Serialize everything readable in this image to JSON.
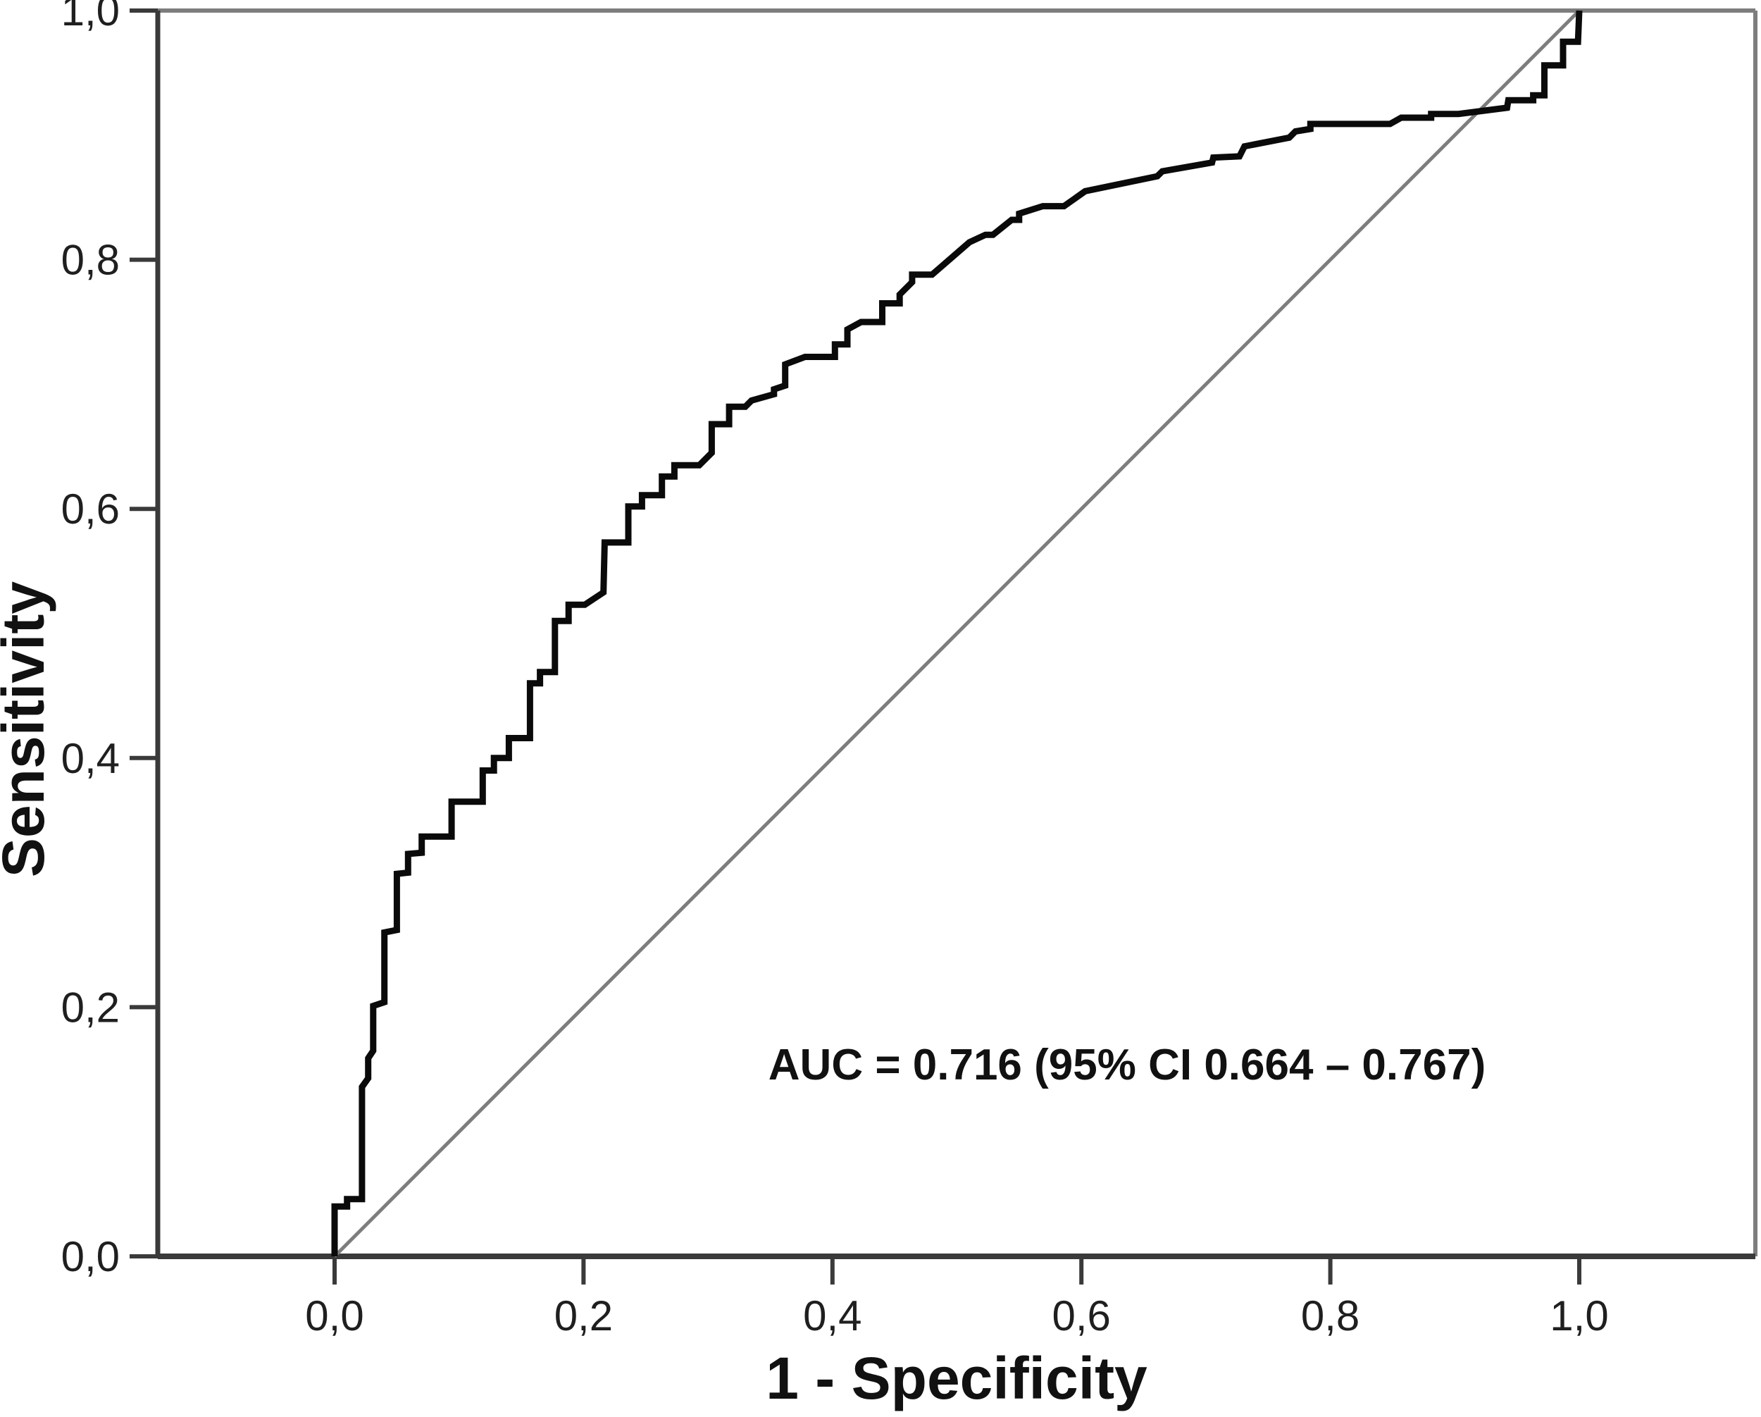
{
  "figure": {
    "background": "#ffffff",
    "annotation": "AUC = 0.716 (95% CI 0.664 – 0.767)",
    "x_axis": {
      "title": "1 - Specificity",
      "tick_labels": [
        "0,0",
        "0,2",
        "0,4",
        "0,6",
        "0,8",
        "1,0"
      ],
      "tick_values": [
        0,
        0.2,
        0.4,
        0.6,
        0.8,
        1.0
      ]
    },
    "y_axis": {
      "title": "Sensitivity",
      "tick_labels": [
        "0,0",
        "0,2",
        "0,4",
        "0,6",
        "0,8",
        "1,0"
      ],
      "tick_values": [
        0,
        0.2,
        0.4,
        0.6,
        0.8,
        1.0
      ]
    },
    "colors": {
      "curve": "#0a0a0a",
      "diagonal": "#7d7d7d",
      "axis": "#3a3a3a",
      "frame": "#7d7d7d",
      "text": "#1f1f1f"
    }
  },
  "chart_data": {
    "type": "line",
    "title": "",
    "xlabel": "1 - Specificity",
    "ylabel": "Sensitivity",
    "xlim": [
      0,
      1
    ],
    "ylim": [
      0,
      1
    ],
    "grid": false,
    "legend": false,
    "auc": 0.716,
    "ci_level": "95%",
    "ci_low": 0.664,
    "ci_high": 0.767,
    "series": [
      {
        "name": "ROC curve",
        "x": [
          0.0,
          0.0,
          0.01,
          0.01,
          0.022,
          0.022,
          0.027,
          0.027,
          0.031,
          0.031,
          0.04,
          0.04,
          0.05,
          0.05,
          0.059,
          0.059,
          0.07,
          0.07,
          0.094,
          0.094,
          0.119,
          0.119,
          0.128,
          0.128,
          0.14,
          0.14,
          0.157,
          0.157,
          0.165,
          0.165,
          0.177,
          0.177,
          0.188,
          0.188,
          0.201,
          0.216,
          0.217,
          0.236,
          0.236,
          0.247,
          0.247,
          0.263,
          0.263,
          0.273,
          0.273,
          0.293,
          0.303,
          0.303,
          0.317,
          0.317,
          0.33,
          0.335,
          0.353,
          0.353,
          0.362,
          0.362,
          0.378,
          0.402,
          0.402,
          0.412,
          0.412,
          0.423,
          0.44,
          0.44,
          0.454,
          0.454,
          0.464,
          0.464,
          0.48,
          0.51,
          0.523,
          0.529,
          0.544,
          0.55,
          0.55,
          0.569,
          0.586,
          0.603,
          0.661,
          0.665,
          0.705,
          0.706,
          0.727,
          0.731,
          0.767,
          0.772,
          0.784,
          0.784,
          0.848,
          0.857,
          0.881,
          0.881,
          0.903,
          0.942,
          0.943,
          0.963,
          0.963,
          0.972,
          0.972,
          0.987,
          0.987,
          0.999,
          1.0
        ],
        "y": [
          0.0,
          0.04,
          0.04,
          0.046,
          0.046,
          0.136,
          0.143,
          0.159,
          0.165,
          0.201,
          0.204,
          0.26,
          0.262,
          0.307,
          0.308,
          0.323,
          0.324,
          0.337,
          0.337,
          0.365,
          0.365,
          0.39,
          0.39,
          0.4,
          0.4,
          0.416,
          0.416,
          0.46,
          0.46,
          0.469,
          0.469,
          0.51,
          0.51,
          0.523,
          0.523,
          0.533,
          0.573,
          0.573,
          0.602,
          0.602,
          0.611,
          0.611,
          0.626,
          0.626,
          0.635,
          0.635,
          0.645,
          0.668,
          0.668,
          0.682,
          0.682,
          0.687,
          0.692,
          0.696,
          0.699,
          0.716,
          0.722,
          0.722,
          0.732,
          0.732,
          0.744,
          0.75,
          0.75,
          0.765,
          0.765,
          0.772,
          0.782,
          0.788,
          0.788,
          0.814,
          0.82,
          0.82,
          0.832,
          0.832,
          0.837,
          0.843,
          0.843,
          0.855,
          0.867,
          0.871,
          0.878,
          0.882,
          0.883,
          0.891,
          0.898,
          0.903,
          0.905,
          0.909,
          0.909,
          0.914,
          0.914,
          0.917,
          0.917,
          0.922,
          0.928,
          0.928,
          0.932,
          0.932,
          0.956,
          0.956,
          0.975,
          0.975,
          1.0
        ]
      },
      {
        "name": "Reference diagonal",
        "x": [
          0,
          1
        ],
        "y": [
          0,
          1
        ]
      }
    ]
  }
}
